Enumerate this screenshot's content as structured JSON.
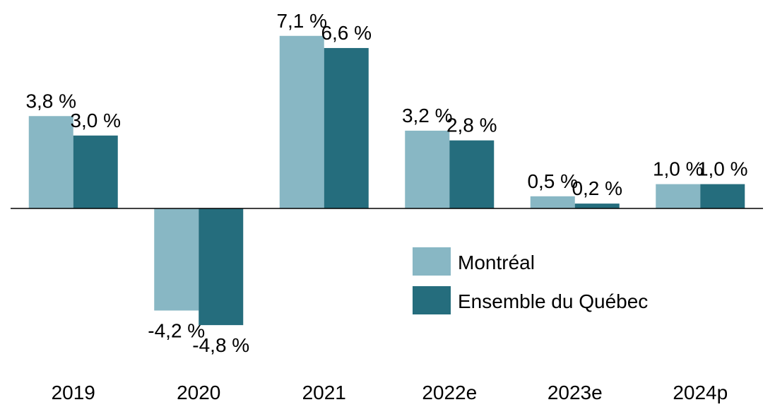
{
  "chart_data": {
    "type": "bar",
    "categories": [
      "2019",
      "2020",
      "2021",
      "2022e",
      "2023e",
      "2024p"
    ],
    "series": [
      {
        "name": "Montréal",
        "color": "#88b7c4",
        "values": [
          3.8,
          -4.2,
          7.1,
          3.2,
          0.5,
          1.0
        ],
        "value_labels": [
          "3,8 %",
          "-4,2 %",
          "7,1 %",
          "3,2 %",
          "0,5 %",
          "1,0 %"
        ]
      },
      {
        "name": "Ensemble du Québec",
        "color": "#256d7d",
        "values": [
          3.0,
          -4.8,
          6.6,
          2.8,
          0.2,
          1.0
        ],
        "value_labels": [
          "3,0 %",
          "-4,8 %",
          "6,6 %",
          "2,8 %",
          "0,2 %",
          "1,0 %"
        ]
      }
    ]
  }
}
